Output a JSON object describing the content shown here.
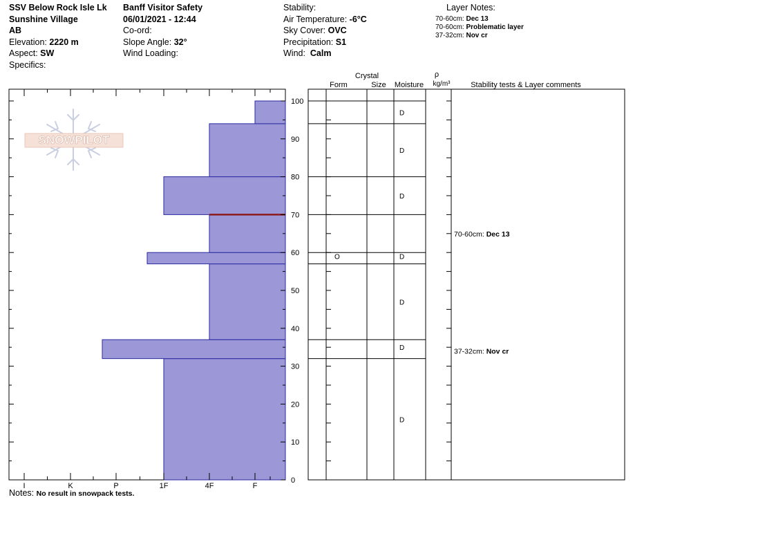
{
  "header": {
    "location": "SSV Below Rock Isle Lk",
    "area": "Sunshine Village",
    "province": "AB",
    "elevation_label": "Elevation:",
    "elevation": "2220 m",
    "aspect_label": "Aspect:",
    "aspect": "SW",
    "specifics_label": "Specifics:",
    "organization": "Banff  Visitor Safety",
    "datetime": "06/01/2021 - 12:44",
    "coord_label": "Co-ord:",
    "slope_label": "Slope Angle:",
    "slope": "32°",
    "wind_loading_label": "Wind Loading:",
    "stability_label": "Stability:",
    "air_temp_label": "Air Temperature:",
    "air_temp": "-6°C",
    "sky_label": "Sky Cover:",
    "sky": "OVC",
    "precip_label": "Precipitation:",
    "precip": "S1",
    "wind_label": "Wind:",
    "wind": "Calm"
  },
  "layer_notes": {
    "title": "Layer Notes:",
    "items": [
      {
        "range": "70-60cm:",
        "text": "Dec 13"
      },
      {
        "range": "70-60cm:",
        "text": "Problematic layer"
      },
      {
        "range": "37-32cm:",
        "text": "Nov cr"
      }
    ]
  },
  "logo_text": "SNOWPILOT",
  "columns": {
    "crystal": "Crystal",
    "form": "Form",
    "size": "Size",
    "moisture": "Moisture",
    "rho": "ρ",
    "density_unit": "kg/m³",
    "stability": "Stability tests & Layer comments"
  },
  "notes": {
    "label": "Notes:",
    "text": "No result in snowpack tests."
  },
  "colors": {
    "hardness_fill": "#9c98d8",
    "hardness_stroke": "#2a2aa0",
    "problem_layer": "#8b1a1a"
  },
  "chart_data": {
    "type": "bar",
    "y_label": "",
    "y_ticks": [
      0,
      10,
      20,
      30,
      40,
      50,
      60,
      70,
      80,
      90,
      100
    ],
    "ylim": [
      0,
      100
    ],
    "hardness_scale": [
      "I",
      "K",
      "P",
      "1F",
      "4F",
      "F"
    ],
    "layers": [
      {
        "bottom": 0,
        "top": 32,
        "hardness": "1F"
      },
      {
        "bottom": 32,
        "top": 37,
        "hardness": "P+"
      },
      {
        "bottom": 37,
        "top": 57,
        "hardness": "4F"
      },
      {
        "bottom": 57,
        "top": 60,
        "hardness": "P-"
      },
      {
        "bottom": 60,
        "top": 70,
        "hardness": "4F"
      },
      {
        "bottom": 70,
        "top": 80,
        "hardness": "1F"
      },
      {
        "bottom": 80,
        "top": 94,
        "hardness": "4F"
      },
      {
        "bottom": 94,
        "top": 100,
        "hardness": "F"
      }
    ],
    "problematic_layer_height": 70,
    "moisture": [
      {
        "height": 97,
        "value": "D"
      },
      {
        "height": 87,
        "value": "D"
      },
      {
        "height": 75,
        "value": "D"
      },
      {
        "height": 59,
        "value": "D"
      },
      {
        "height": 47,
        "value": "D"
      },
      {
        "height": 35,
        "value": "D"
      },
      {
        "height": 16,
        "value": "D"
      }
    ],
    "crystal_form": [
      {
        "height": 59,
        "value": "O"
      }
    ],
    "layer_comments": [
      {
        "height": 65,
        "range": "70-60cm:",
        "text": "Dec 13"
      },
      {
        "height": 34,
        "range": "37-32cm:",
        "text": "Nov cr"
      }
    ]
  }
}
